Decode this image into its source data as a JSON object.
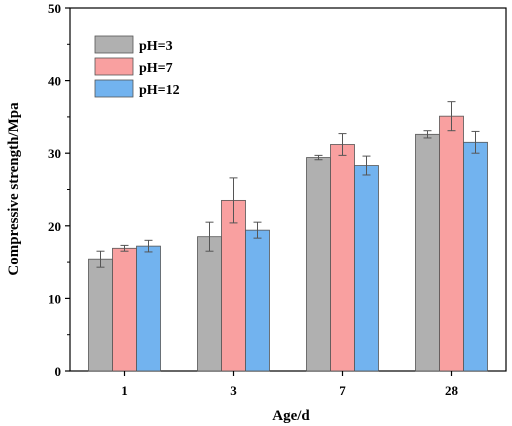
{
  "chart_data": {
    "type": "bar",
    "categories": [
      "1",
      "3",
      "7",
      "28"
    ],
    "series": [
      {
        "name": "pH=3",
        "color": "#b0b0b0",
        "values": [
          15.4,
          18.5,
          29.4,
          32.6
        ],
        "errors": [
          1.1,
          2.0,
          0.3,
          0.5
        ]
      },
      {
        "name": "pH=7",
        "color": "#f9a0a0",
        "values": [
          16.9,
          23.5,
          31.2,
          35.1
        ],
        "errors": [
          0.4,
          3.1,
          1.5,
          2.0
        ]
      },
      {
        "name": "pH=12",
        "color": "#72b3ef",
        "values": [
          17.2,
          19.4,
          28.3,
          31.5
        ],
        "errors": [
          0.8,
          1.1,
          1.3,
          1.5
        ]
      }
    ],
    "xlabel": "Age/d",
    "ylabel": "Compressive strength/Mpa",
    "ylim": [
      0,
      50
    ],
    "yticks": [
      0,
      10,
      20,
      30,
      40,
      50
    ],
    "grid": false,
    "legend_position": "top-left"
  }
}
